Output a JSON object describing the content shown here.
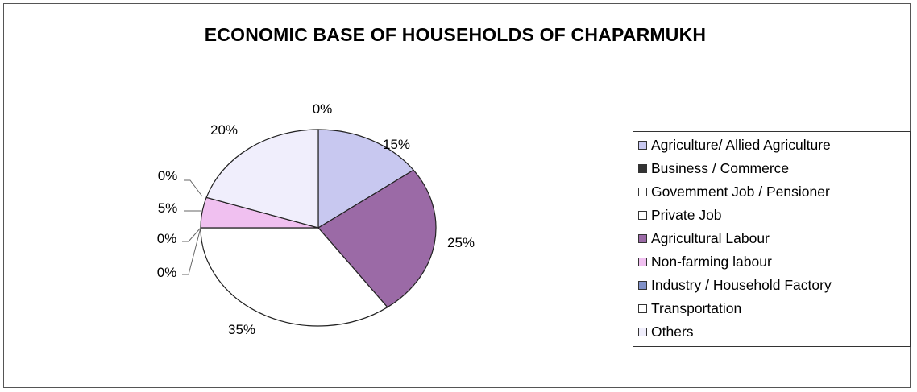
{
  "chart_data": {
    "type": "pie",
    "title": "ECONOMIC BASE OF HOUSEHOLDS OF CHAPARMUKH",
    "categories": [
      "Agriculture/ Allied Agriculture",
      "Business / Commerce",
      "Govemment Job / Pensioner",
      "Private Job",
      "Agricultural Labour",
      "Non-farming labour",
      "Industry / Household Factory",
      "Transportation",
      "Others"
    ],
    "values": [
      15,
      0,
      0,
      0,
      25,
      5,
      0,
      35,
      20
    ],
    "labels": [
      "15%",
      "0%",
      "0%",
      "0%",
      "25%",
      "5%",
      "0%",
      "35%",
      "20%"
    ],
    "slice_order_clockwise_from_top": [
      "Agriculture/ Allied Agriculture",
      "Agricultural Labour",
      "Transportation",
      "Industry / Household Factory",
      "Private Job",
      "Non-farming labour",
      "Government Job / Pensioner",
      "Others",
      "Business / Commerce"
    ],
    "legend_position": "right",
    "colors": {
      "Agriculture/ Allied Agriculture": "#c8c8f0",
      "Business / Commerce": "#333333",
      "Govemment Job / Pensioner": "#ffffff",
      "Private Job": "#ffffff",
      "Agricultural Labour": "#9b6aa6",
      "Non-farming labour": "#f0c0f0",
      "Industry / Household Factory": "#8090c8",
      "Transportation": "#ffffff",
      "Others": "#f0eefc"
    }
  }
}
